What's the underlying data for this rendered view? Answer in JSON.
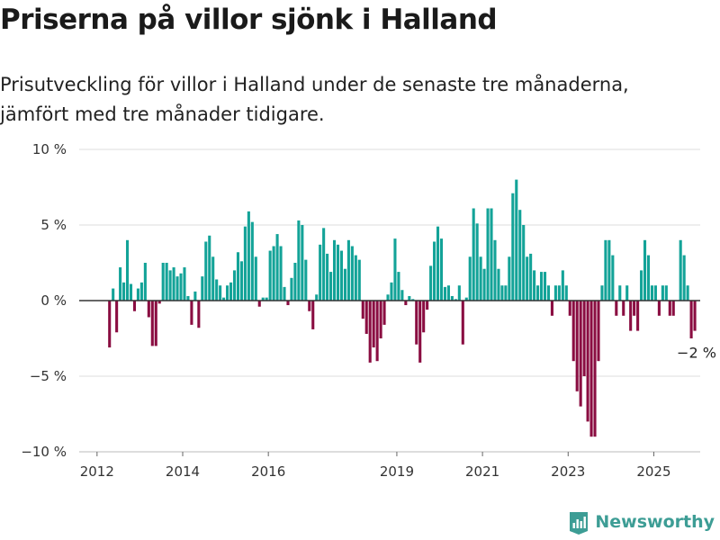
{
  "title": "Priserna på villor sjönk i Halland",
  "subtitle": "Prisutveckling för villor i Halland under de senaste tre månaderna, jämfört med tre månader tidigare.",
  "logo_text": "Newsworthy",
  "colors": {
    "positive": "#13a398",
    "negative": "#8a0d41",
    "grid": "#dddddd",
    "zero_line": "#333333",
    "logo": "#3d9d95"
  },
  "chart_data": {
    "type": "bar",
    "ylim": [
      -10,
      10
    ],
    "y_ticks": [
      10,
      5,
      0,
      -5,
      -10
    ],
    "y_tick_labels": [
      "10 %",
      "5 %",
      "0 %",
      "−5 %",
      "−10 %"
    ],
    "x_ticks": [
      "2012-01",
      "2014-01",
      "2016-01",
      "2019-01",
      "2021-01",
      "2023-01",
      "2025-01"
    ],
    "x_tick_labels": [
      "2012",
      "2014",
      "2016",
      "2019",
      "2021",
      "2023",
      "2025"
    ],
    "x_range": [
      "2011-08",
      "2026-02"
    ],
    "annotation": "−2 %",
    "series": [
      {
        "start": "2011-08",
        "values": [
          null,
          null,
          null,
          null,
          null,
          null,
          null,
          null,
          -3.1,
          0.8,
          -2.1,
          2.2,
          1.2,
          4.0,
          1.1,
          -0.7,
          0.8,
          1.2,
          2.5,
          -1.1,
          -3.0,
          -3.0,
          -0.2,
          2.5,
          2.5,
          2.0,
          2.2,
          1.6,
          1.8,
          2.2,
          0.3,
          -1.6,
          0.6,
          -1.8,
          1.6,
          3.9,
          4.3,
          2.9,
          1.4,
          1.0,
          0.2,
          1.0,
          1.2,
          2.0,
          3.2,
          2.6,
          4.9,
          5.9,
          5.2,
          2.9,
          -0.4,
          0.2,
          0.2,
          3.3,
          3.6,
          4.4,
          3.6,
          0.9,
          -0.3,
          1.5,
          2.5,
          5.3,
          5.0,
          2.7,
          -0.7,
          -1.9,
          0.4,
          3.7,
          4.8,
          3.1,
          1.9,
          4.0,
          3.7,
          3.3,
          2.1,
          4.0,
          3.6,
          3.0,
          2.7,
          -1.2,
          -2.2,
          -4.1,
          -3.1,
          -4.0,
          -2.5,
          -1.6,
          0.4,
          1.2,
          4.1,
          1.9,
          0.7,
          -0.3,
          0.3,
          0.1,
          -2.9,
          -4.1,
          -2.1,
          -0.6,
          2.3,
          3.9,
          4.9,
          4.1,
          0.9,
          1.0,
          0.3,
          0.1,
          1.0,
          -2.9,
          0.2,
          2.9,
          6.1,
          5.1,
          2.9,
          2.1,
          6.1,
          6.1,
          4.0,
          2.1,
          1.0,
          1.0,
          2.9,
          7.1,
          8.0,
          6.0,
          5.0,
          2.9,
          3.1,
          2.0,
          1.0,
          1.9,
          1.9,
          1.0,
          -1.0,
          1.0,
          1.0,
          2.0,
          1.0,
          -1.0,
          -4.0,
          -6.0,
          -7.0,
          -5.0,
          -8.0,
          -9.0,
          -9.0,
          -4.0,
          1.0,
          4.0,
          4.0,
          3.0,
          -1.0,
          1.0,
          -1.0,
          1.0,
          -2.0,
          -1.0,
          -2.0,
          2.0,
          4.0,
          3.0,
          1.0,
          1.0,
          -1.0,
          1.0,
          1.0,
          -1.0,
          -1.0,
          0.0,
          4.0,
          3.0,
          1.0,
          -2.5,
          -2.0
        ]
      }
    ]
  }
}
